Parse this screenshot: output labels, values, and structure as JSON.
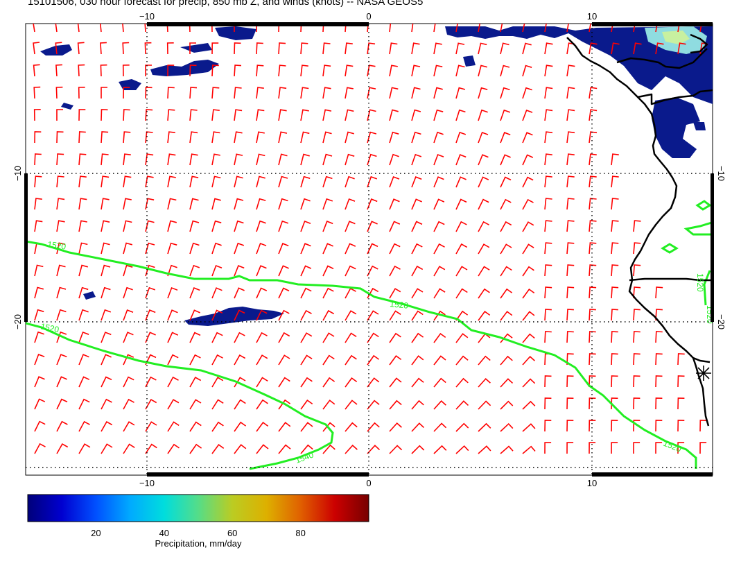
{
  "title": "15101506, 030 hour forecast for precip, 850 mb Z, and winds (knots) -- NASA GEOS5",
  "map": {
    "lon_range": [
      -15.4,
      15.4
    ],
    "lat_range": [
      -30.6,
      0.4
    ],
    "grid_lons": [
      -10,
      0,
      10
    ],
    "grid_lats": [
      -10,
      -20
    ],
    "top_tick_labels": [
      "−10",
      "0",
      "10"
    ],
    "bottom_tick_labels": [
      "−10",
      "0",
      "10"
    ],
    "left_tick_labels": [
      "−10",
      "−20"
    ],
    "right_tick_labels": [
      "−10",
      "−20"
    ],
    "colors": {
      "wind_barb": "#ff0000",
      "contour": "#22ee22",
      "coastline": "#000000",
      "precip_low": "#0a1a8c",
      "precip_high": "#c8f0a0"
    },
    "contour_labels": [
      "1520",
      "1520",
      "1520",
      "1540",
      "1520",
      "1520",
      "1520"
    ]
  },
  "colorbar": {
    "title": "Precipitation, mm/day",
    "range": [
      0,
      100
    ],
    "tick_labels": [
      "20",
      "40",
      "60",
      "80"
    ],
    "tick_values": [
      20,
      40,
      60,
      80
    ],
    "stops": [
      "#00007a",
      "#0000d0",
      "#0050ff",
      "#00aaff",
      "#00dddd",
      "#55dd88",
      "#bbcc22",
      "#ddb000",
      "#e06000",
      "#cc0000",
      "#770000"
    ]
  }
}
